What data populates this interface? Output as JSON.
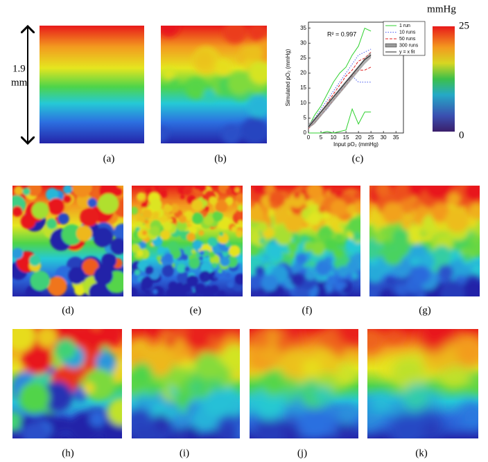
{
  "scale_bar": {
    "value": "1.9",
    "unit": "mm"
  },
  "panel_labels": [
    "(a)",
    "(b)",
    "(c)",
    "(d)",
    "(e)",
    "(f)",
    "(g)",
    "(h)",
    "(i)",
    "(j)",
    "(k)"
  ],
  "colorbar": {
    "unit": "mmHg",
    "max": "25",
    "min": "0"
  },
  "chart_data": {
    "type": "line",
    "x_label": "Input pO₂ (mmHg)",
    "y_label": "Simulated pO₂ (mmHg)",
    "annotation": "R² = 0.997",
    "x": [
      0,
      2.5,
      5,
      7.5,
      10,
      12.5,
      15,
      17.5,
      20,
      22.5,
      25
    ],
    "xlim": [
      0,
      38
    ],
    "xticks": [
      0,
      5,
      10,
      15,
      20,
      25,
      30,
      35
    ],
    "ylim": [
      0,
      37
    ],
    "yticks": [
      0,
      5,
      10,
      15,
      20,
      25,
      30,
      35
    ],
    "series": [
      {
        "name": "1 run",
        "color": "#2fd12f",
        "style": "solid",
        "values": [
          2,
          6,
          9,
          13,
          17,
          20,
          22,
          26,
          29,
          35,
          34
        ],
        "lower": [
          0,
          0,
          0,
          0.5,
          0,
          0.5,
          1,
          8,
          3,
          7,
          7
        ]
      },
      {
        "name": "10 runs",
        "color": "#4a5cf0",
        "style": "dotted",
        "values": [
          2.5,
          5,
          8,
          11,
          14,
          17,
          20,
          23,
          26,
          27,
          28
        ],
        "lower": [
          2,
          3.5,
          6,
          8,
          11,
          14,
          17,
          19,
          17,
          17,
          17
        ]
      },
      {
        "name": "50 runs",
        "color": "#e02020",
        "style": "dashed",
        "values": [
          2,
          4.5,
          7,
          10,
          13,
          16,
          19,
          21,
          24,
          25,
          27
        ],
        "lower": [
          1.5,
          3.5,
          6,
          8.5,
          11,
          13.5,
          16,
          19,
          21,
          21,
          22
        ]
      },
      {
        "name": "300 runs",
        "color": "#9a9a9a",
        "style": "band",
        "values": [
          3,
          5,
          7.5,
          10,
          12.5,
          15,
          17.5,
          20,
          22.5,
          25,
          27
        ],
        "lower": [
          1.5,
          3,
          5.5,
          8,
          10.5,
          13,
          15.5,
          18,
          20.5,
          23,
          25
        ]
      },
      {
        "name": "y = x fit",
        "color": "#222222",
        "style": "solid",
        "values": [
          2,
          4.5,
          7,
          9.5,
          12,
          14.5,
          17,
          19.5,
          22,
          24.5,
          26
        ]
      }
    ]
  }
}
